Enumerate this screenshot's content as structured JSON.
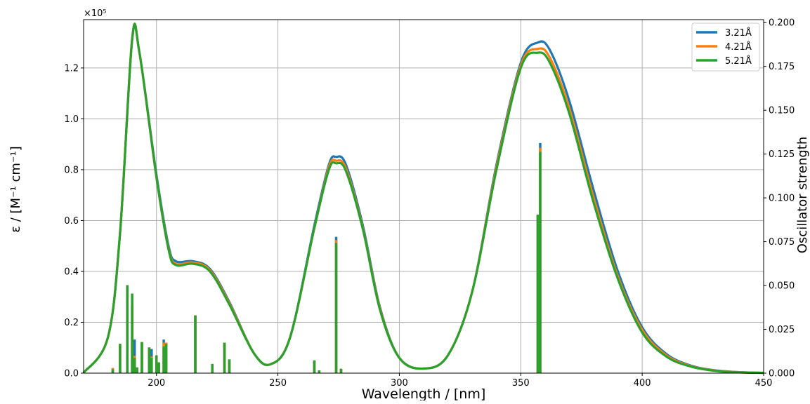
{
  "chart_data": {
    "type": "line",
    "xlabel": "Wavelength / [nm]",
    "ylabel": "ε / [M⁻¹ cm⁻¹]",
    "y2label": "Oscillator strength",
    "y_multiplier": "×10⁵",
    "xlim": [
      170,
      450
    ],
    "ylim": [
      0,
      139000
    ],
    "y2lim": [
      0,
      0.2017
    ],
    "xticks": [
      200,
      250,
      300,
      350,
      400,
      450
    ],
    "yticks": [
      0.0,
      0.2,
      0.4,
      0.6,
      0.8,
      1.0,
      1.2
    ],
    "ytick_labels": [
      "0.0",
      "0.2",
      "0.4",
      "0.6",
      "0.8",
      "1.0",
      "1.2"
    ],
    "y2ticks": [
      "0.000",
      "0.025",
      "0.050",
      "0.075",
      "0.100",
      "0.125",
      "0.150",
      "0.175",
      "0.200"
    ],
    "grid": true,
    "legend_position": "top-right",
    "series": [
      {
        "name": "3.21Å",
        "color": "#1f77b4",
        "curve": [
          [
            170,
            100
          ],
          [
            180,
            14000
          ],
          [
            185,
            55000
          ],
          [
            190,
            131000
          ],
          [
            193,
            126000
          ],
          [
            200,
            78000
          ],
          [
            205,
            50000
          ],
          [
            208,
            44000
          ],
          [
            215,
            44000
          ],
          [
            222,
            41000
          ],
          [
            230,
            28000
          ],
          [
            240,
            8000
          ],
          [
            247,
            3500
          ],
          [
            255,
            14000
          ],
          [
            265,
            58000
          ],
          [
            271,
            82000
          ],
          [
            274,
            85000
          ],
          [
            278,
            82000
          ],
          [
            285,
            58000
          ],
          [
            292,
            26000
          ],
          [
            300,
            6000
          ],
          [
            310,
            1800
          ],
          [
            320,
            7000
          ],
          [
            330,
            32000
          ],
          [
            340,
            82000
          ],
          [
            350,
            122000
          ],
          [
            357,
            130000
          ],
          [
            362,
            127000
          ],
          [
            370,
            107000
          ],
          [
            380,
            72000
          ],
          [
            390,
            40000
          ],
          [
            400,
            18000
          ],
          [
            410,
            7500
          ],
          [
            420,
            3000
          ],
          [
            430,
            1100
          ],
          [
            440,
            400
          ],
          [
            450,
            150
          ]
        ],
        "sticks": [
          [
            182,
            2000
          ],
          [
            185,
            11500
          ],
          [
            188,
            34600
          ],
          [
            190,
            26500
          ],
          [
            191,
            13200
          ],
          [
            192,
            2300
          ],
          [
            194,
            12200
          ],
          [
            197,
            10100
          ],
          [
            198,
            9500
          ],
          [
            200,
            7000
          ],
          [
            201,
            4200
          ],
          [
            203,
            13200
          ],
          [
            204,
            12000
          ],
          [
            216,
            22700
          ],
          [
            223,
            3600
          ],
          [
            228,
            12000
          ],
          [
            230,
            5400
          ],
          [
            265,
            5000
          ],
          [
            267,
            1100
          ],
          [
            274,
            53600
          ],
          [
            276,
            1700
          ],
          [
            357,
            62300
          ],
          [
            358,
            90500
          ]
        ]
      },
      {
        "name": "4.21Å",
        "color": "#ff7f0e",
        "curve": [
          [
            170,
            100
          ],
          [
            180,
            14000
          ],
          [
            185,
            55000
          ],
          [
            190,
            131500
          ],
          [
            193,
            126000
          ],
          [
            200,
            77000
          ],
          [
            205,
            49000
          ],
          [
            208,
            43000
          ],
          [
            215,
            43500
          ],
          [
            222,
            40500
          ],
          [
            230,
            27500
          ],
          [
            240,
            8000
          ],
          [
            247,
            3500
          ],
          [
            255,
            14000
          ],
          [
            265,
            57000
          ],
          [
            271,
            81000
          ],
          [
            274,
            83500
          ],
          [
            278,
            80500
          ],
          [
            285,
            57000
          ],
          [
            292,
            25500
          ],
          [
            300,
            6000
          ],
          [
            310,
            1800
          ],
          [
            320,
            7000
          ],
          [
            330,
            32000
          ],
          [
            340,
            81000
          ],
          [
            350,
            121000
          ],
          [
            357,
            127500
          ],
          [
            362,
            124000
          ],
          [
            370,
            104000
          ],
          [
            380,
            69000
          ],
          [
            390,
            38000
          ],
          [
            400,
            17000
          ],
          [
            410,
            7000
          ],
          [
            420,
            2800
          ],
          [
            430,
            1000
          ],
          [
            440,
            350
          ],
          [
            450,
            120
          ]
        ],
        "sticks": [
          [
            182,
            2000
          ],
          [
            185,
            11500
          ],
          [
            188,
            34600
          ],
          [
            190,
            26500
          ],
          [
            191,
            6800
          ],
          [
            192,
            2200
          ],
          [
            194,
            12200
          ],
          [
            197,
            10100
          ],
          [
            198,
            6500
          ],
          [
            200,
            7000
          ],
          [
            201,
            4200
          ],
          [
            203,
            12000
          ],
          [
            204,
            12000
          ],
          [
            216,
            22700
          ],
          [
            223,
            3600
          ],
          [
            228,
            12000
          ],
          [
            230,
            5400
          ],
          [
            265,
            5000
          ],
          [
            267,
            1100
          ],
          [
            274,
            52300
          ],
          [
            276,
            1700
          ],
          [
            357,
            62300
          ],
          [
            358,
            88600
          ]
        ]
      },
      {
        "name": "5.21Å",
        "color": "#2ca02c",
        "curve": [
          [
            170,
            100
          ],
          [
            180,
            14000
          ],
          [
            185,
            55000
          ],
          [
            190,
            131500
          ],
          [
            193,
            126000
          ],
          [
            200,
            77000
          ],
          [
            205,
            48500
          ],
          [
            208,
            42500
          ],
          [
            215,
            43000
          ],
          [
            222,
            40000
          ],
          [
            230,
            27000
          ],
          [
            240,
            8000
          ],
          [
            247,
            3500
          ],
          [
            255,
            14000
          ],
          [
            265,
            57000
          ],
          [
            271,
            80000
          ],
          [
            274,
            82500
          ],
          [
            278,
            79500
          ],
          [
            285,
            56500
          ],
          [
            292,
            25000
          ],
          [
            300,
            6000
          ],
          [
            310,
            1800
          ],
          [
            320,
            7000
          ],
          [
            330,
            32000
          ],
          [
            340,
            80000
          ],
          [
            350,
            120000
          ],
          [
            357,
            126000
          ],
          [
            362,
            122000
          ],
          [
            370,
            102000
          ],
          [
            380,
            67000
          ],
          [
            390,
            37000
          ],
          [
            400,
            16000
          ],
          [
            410,
            6500
          ],
          [
            420,
            2600
          ],
          [
            430,
            900
          ],
          [
            440,
            300
          ],
          [
            450,
            100
          ]
        ],
        "sticks": [
          [
            182,
            1500
          ],
          [
            185,
            11500
          ],
          [
            188,
            34600
          ],
          [
            190,
            31300
          ],
          [
            191,
            6000
          ],
          [
            192,
            2100
          ],
          [
            194,
            12200
          ],
          [
            197,
            10100
          ],
          [
            198,
            6000
          ],
          [
            200,
            7000
          ],
          [
            201,
            4200
          ],
          [
            203,
            10500
          ],
          [
            204,
            11500
          ],
          [
            216,
            22700
          ],
          [
            223,
            3600
          ],
          [
            228,
            12000
          ],
          [
            230,
            5400
          ],
          [
            265,
            5000
          ],
          [
            267,
            1100
          ],
          [
            274,
            51200
          ],
          [
            276,
            1700
          ],
          [
            357,
            62300
          ],
          [
            358,
            87000
          ]
        ]
      }
    ]
  }
}
